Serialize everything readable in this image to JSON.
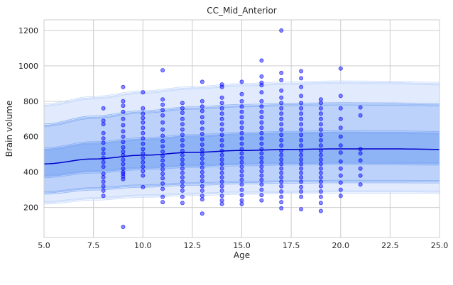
{
  "chart_data": {
    "type": "scatter",
    "title": "CC_Mid_Anterior",
    "xlabel": "Age",
    "ylabel": "Brain volume",
    "xlim": [
      5,
      25
    ],
    "ylim": [
      30,
      1260
    ],
    "xticks": [
      5.0,
      7.5,
      10.0,
      12.5,
      15.0,
      17.5,
      20.0,
      22.5,
      25.0
    ],
    "xtick_labels": [
      "5.0",
      "7.5",
      "10.0",
      "12.5",
      "15.0",
      "17.5",
      "20.0",
      "22.5",
      "25.0"
    ],
    "yticks": [
      200,
      400,
      600,
      800,
      1000,
      1200
    ],
    "ytick_labels": [
      "200",
      "400",
      "600",
      "800",
      "1000",
      "1200"
    ],
    "grid": true,
    "colors": {
      "points": "#0000ff",
      "median_line": "#0000cc",
      "band_outer": "#e1ebfd",
      "band_middle": "#bcd2fa",
      "band_inner": "#8fb4f6",
      "band_edge": "#7ea6f3"
    },
    "curves_x": [
      5,
      7.5,
      10,
      12.5,
      15,
      17.5,
      20,
      22.5,
      25
    ],
    "curves": {
      "outer_upper": [
        778,
        820,
        852,
        876,
        893,
        903,
        908,
        906,
        900
      ],
      "middle_upper": [
        665,
        710,
        740,
        762,
        775,
        782,
        785,
        784,
        780
      ],
      "inner_upper": [
        530,
        565,
        587,
        605,
        617,
        623,
        627,
        626,
        622
      ],
      "median": [
        446,
        474,
        495,
        511,
        522,
        528,
        531,
        531,
        528
      ],
      "inner_lower": [
        375,
        401,
        420,
        433,
        442,
        447,
        449,
        448,
        446
      ],
      "middle_lower": [
        282,
        305,
        321,
        332,
        340,
        344,
        346,
        346,
        345
      ],
      "outer_lower": [
        226,
        248,
        264,
        274,
        281,
        285,
        287,
        287,
        286
      ]
    },
    "points": [
      [
        8,
        760
      ],
      [
        8,
        690
      ],
      [
        8,
        670
      ],
      [
        8,
        620
      ],
      [
        8,
        590
      ],
      [
        8,
        565
      ],
      [
        8,
        530
      ],
      [
        8,
        505
      ],
      [
        8,
        480
      ],
      [
        8,
        455
      ],
      [
        8,
        430
      ],
      [
        8,
        390
      ],
      [
        8,
        370
      ],
      [
        8,
        345
      ],
      [
        8,
        320
      ],
      [
        8,
        295
      ],
      [
        8,
        265
      ],
      [
        9,
        880
      ],
      [
        9,
        800
      ],
      [
        9,
        775
      ],
      [
        9,
        740
      ],
      [
        9,
        700
      ],
      [
        9,
        665
      ],
      [
        9,
        630
      ],
      [
        9,
        600
      ],
      [
        9,
        570
      ],
      [
        9,
        540
      ],
      [
        9,
        515
      ],
      [
        9,
        495
      ],
      [
        9,
        470
      ],
      [
        9,
        445
      ],
      [
        9,
        420
      ],
      [
        9,
        400
      ],
      [
        9,
        390
      ],
      [
        9,
        375
      ],
      [
        9,
        360
      ],
      [
        9,
        90
      ],
      [
        10,
        850
      ],
      [
        10,
        760
      ],
      [
        10,
        730
      ],
      [
        10,
        705
      ],
      [
        10,
        680
      ],
      [
        10,
        650
      ],
      [
        10,
        620
      ],
      [
        10,
        590
      ],
      [
        10,
        560
      ],
      [
        10,
        530
      ],
      [
        10,
        505
      ],
      [
        10,
        480
      ],
      [
        10,
        455
      ],
      [
        10,
        430
      ],
      [
        10,
        405
      ],
      [
        10,
        380
      ],
      [
        10,
        315
      ],
      [
        11,
        975
      ],
      [
        11,
        810
      ],
      [
        11,
        780
      ],
      [
        11,
        750
      ],
      [
        11,
        720
      ],
      [
        11,
        680
      ],
      [
        11,
        640
      ],
      [
        11,
        605
      ],
      [
        11,
        575
      ],
      [
        11,
        545
      ],
      [
        11,
        515
      ],
      [
        11,
        490
      ],
      [
        11,
        465
      ],
      [
        11,
        440
      ],
      [
        11,
        415
      ],
      [
        11,
        390
      ],
      [
        11,
        365
      ],
      [
        11,
        335
      ],
      [
        11,
        305
      ],
      [
        11,
        260
      ],
      [
        11,
        230
      ],
      [
        12,
        790
      ],
      [
        12,
        760
      ],
      [
        12,
        735
      ],
      [
        12,
        700
      ],
      [
        12,
        670
      ],
      [
        12,
        640
      ],
      [
        12,
        610
      ],
      [
        12,
        580
      ],
      [
        12,
        550
      ],
      [
        12,
        520
      ],
      [
        12,
        495
      ],
      [
        12,
        470
      ],
      [
        12,
        445
      ],
      [
        12,
        420
      ],
      [
        12,
        395
      ],
      [
        12,
        370
      ],
      [
        12,
        345
      ],
      [
        12,
        320
      ],
      [
        12,
        295
      ],
      [
        12,
        260
      ],
      [
        12,
        225
      ],
      [
        13,
        910
      ],
      [
        13,
        800
      ],
      [
        13,
        770
      ],
      [
        13,
        745
      ],
      [
        13,
        710
      ],
      [
        13,
        680
      ],
      [
        13,
        645
      ],
      [
        13,
        615
      ],
      [
        13,
        585
      ],
      [
        13,
        555
      ],
      [
        13,
        525
      ],
      [
        13,
        500
      ],
      [
        13,
        475
      ],
      [
        13,
        450
      ],
      [
        13,
        425
      ],
      [
        13,
        400
      ],
      [
        13,
        375
      ],
      [
        13,
        350
      ],
      [
        13,
        320
      ],
      [
        13,
        295
      ],
      [
        13,
        265
      ],
      [
        13,
        245
      ],
      [
        13,
        165
      ],
      [
        14,
        895
      ],
      [
        14,
        880
      ],
      [
        14,
        820
      ],
      [
        14,
        790
      ],
      [
        14,
        760
      ],
      [
        14,
        730
      ],
      [
        14,
        700
      ],
      [
        14,
        670
      ],
      [
        14,
        640
      ],
      [
        14,
        610
      ],
      [
        14,
        580
      ],
      [
        14,
        550
      ],
      [
        14,
        520
      ],
      [
        14,
        495
      ],
      [
        14,
        470
      ],
      [
        14,
        445
      ],
      [
        14,
        420
      ],
      [
        14,
        395
      ],
      [
        14,
        370
      ],
      [
        14,
        345
      ],
      [
        14,
        320
      ],
      [
        14,
        295
      ],
      [
        14,
        265
      ],
      [
        14,
        240
      ],
      [
        14,
        220
      ],
      [
        15,
        910
      ],
      [
        15,
        840
      ],
      [
        15,
        800
      ],
      [
        15,
        770
      ],
      [
        15,
        740
      ],
      [
        15,
        710
      ],
      [
        15,
        680
      ],
      [
        15,
        650
      ],
      [
        15,
        620
      ],
      [
        15,
        590
      ],
      [
        15,
        560
      ],
      [
        15,
        530
      ],
      [
        15,
        505
      ],
      [
        15,
        480
      ],
      [
        15,
        455
      ],
      [
        15,
        430
      ],
      [
        15,
        405
      ],
      [
        15,
        380
      ],
      [
        15,
        355
      ],
      [
        15,
        330
      ],
      [
        15,
        300
      ],
      [
        15,
        270
      ],
      [
        15,
        240
      ],
      [
        15,
        220
      ],
      [
        16,
        1030
      ],
      [
        16,
        940
      ],
      [
        16,
        905
      ],
      [
        16,
        890
      ],
      [
        16,
        850
      ],
      [
        16,
        800
      ],
      [
        16,
        770
      ],
      [
        16,
        740
      ],
      [
        16,
        710
      ],
      [
        16,
        680
      ],
      [
        16,
        650
      ],
      [
        16,
        620
      ],
      [
        16,
        590
      ],
      [
        16,
        560
      ],
      [
        16,
        530
      ],
      [
        16,
        505
      ],
      [
        16,
        480
      ],
      [
        16,
        455
      ],
      [
        16,
        430
      ],
      [
        16,
        405
      ],
      [
        16,
        380
      ],
      [
        16,
        355
      ],
      [
        16,
        330
      ],
      [
        16,
        300
      ],
      [
        16,
        270
      ],
      [
        16,
        240
      ],
      [
        17,
        1200
      ],
      [
        17,
        960
      ],
      [
        17,
        920
      ],
      [
        17,
        860
      ],
      [
        17,
        820
      ],
      [
        17,
        790
      ],
      [
        17,
        760
      ],
      [
        17,
        730
      ],
      [
        17,
        700
      ],
      [
        17,
        670
      ],
      [
        17,
        640
      ],
      [
        17,
        610
      ],
      [
        17,
        580
      ],
      [
        17,
        550
      ],
      [
        17,
        520
      ],
      [
        17,
        495
      ],
      [
        17,
        470
      ],
      [
        17,
        445
      ],
      [
        17,
        420
      ],
      [
        17,
        395
      ],
      [
        17,
        370
      ],
      [
        17,
        345
      ],
      [
        17,
        320
      ],
      [
        17,
        290
      ],
      [
        17,
        260
      ],
      [
        17,
        230
      ],
      [
        17,
        195
      ],
      [
        18,
        970
      ],
      [
        18,
        930
      ],
      [
        18,
        880
      ],
      [
        18,
        830
      ],
      [
        18,
        790
      ],
      [
        18,
        760
      ],
      [
        18,
        730
      ],
      [
        18,
        700
      ],
      [
        18,
        670
      ],
      [
        18,
        640
      ],
      [
        18,
        610
      ],
      [
        18,
        580
      ],
      [
        18,
        550
      ],
      [
        18,
        520
      ],
      [
        18,
        495
      ],
      [
        18,
        470
      ],
      [
        18,
        445
      ],
      [
        18,
        420
      ],
      [
        18,
        395
      ],
      [
        18,
        370
      ],
      [
        18,
        345
      ],
      [
        18,
        315
      ],
      [
        18,
        290
      ],
      [
        18,
        260
      ],
      [
        18,
        190
      ],
      [
        19,
        810
      ],
      [
        19,
        790
      ],
      [
        19,
        760
      ],
      [
        19,
        730
      ],
      [
        19,
        700
      ],
      [
        19,
        670
      ],
      [
        19,
        640
      ],
      [
        19,
        610
      ],
      [
        19,
        580
      ],
      [
        19,
        550
      ],
      [
        19,
        520
      ],
      [
        19,
        495
      ],
      [
        19,
        470
      ],
      [
        19,
        445
      ],
      [
        19,
        420
      ],
      [
        19,
        395
      ],
      [
        19,
        370
      ],
      [
        19,
        345
      ],
      [
        19,
        320
      ],
      [
        19,
        290
      ],
      [
        19,
        260
      ],
      [
        19,
        225
      ],
      [
        19,
        180
      ],
      [
        20,
        985
      ],
      [
        20,
        830
      ],
      [
        20,
        760
      ],
      [
        20,
        700
      ],
      [
        20,
        650
      ],
      [
        20,
        600
      ],
      [
        20,
        550
      ],
      [
        20,
        510
      ],
      [
        20,
        460
      ],
      [
        20,
        420
      ],
      [
        20,
        380
      ],
      [
        20,
        340
      ],
      [
        20,
        300
      ],
      [
        20,
        265
      ],
      [
        21,
        765
      ],
      [
        21,
        720
      ],
      [
        21,
        530
      ],
      [
        21,
        505
      ],
      [
        21,
        465
      ],
      [
        21,
        420
      ],
      [
        21,
        380
      ],
      [
        21,
        330
      ]
    ]
  }
}
